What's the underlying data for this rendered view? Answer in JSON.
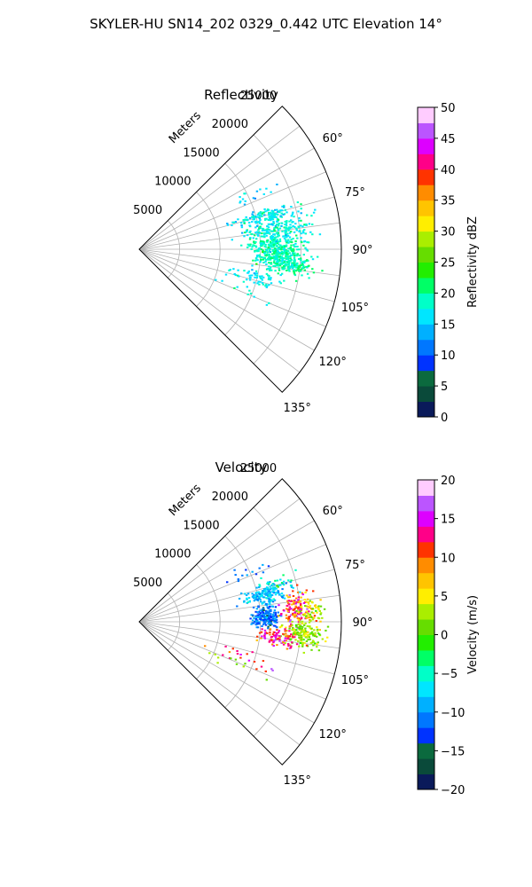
{
  "figure": {
    "suptitle": "SKYLER-HU  SN14_202  0329_0.442 UTC Elevation 14°"
  },
  "chart_data": [
    {
      "type": "polar-sector-scatter",
      "title": "Reflectivity",
      "radial_label": "Meters",
      "radial_ticks": [
        5000,
        10000,
        15000,
        20000,
        25000
      ],
      "radial_tick_labels": [
        "5000",
        "10000",
        "15000",
        "20000",
        "25000"
      ],
      "rmax": 25000,
      "theta_range_deg": [
        45,
        135
      ],
      "theta_ticks_deg": [
        60,
        75,
        90,
        105,
        120,
        135
      ],
      "theta_tick_labels": [
        "60°",
        "75°",
        "90°",
        "105°",
        "120°",
        "135°"
      ],
      "grid": true,
      "colorbar": {
        "label": "Reflectivity dBZ",
        "min": 0,
        "max": 50,
        "ticks": [
          0,
          5,
          10,
          15,
          20,
          25,
          30,
          35,
          40,
          45,
          50
        ],
        "tick_labels": [
          "0",
          "5",
          "10",
          "15",
          "20",
          "25",
          "30",
          "35",
          "40",
          "45",
          "50"
        ]
      },
      "echo_clusters": [
        {
          "range_m": 17000,
          "azimuth_deg": 90,
          "count": 340,
          "spread_r": 2600,
          "spread_az": 4.5,
          "value_mean": 19,
          "value_sd": 2.5
        },
        {
          "range_m": 17500,
          "azimuth_deg": 82,
          "count": 180,
          "spread_r": 3000,
          "spread_az": 3.5,
          "value_mean": 18,
          "value_sd": 2.5
        },
        {
          "range_m": 18500,
          "azimuth_deg": 96,
          "count": 160,
          "spread_r": 2200,
          "spread_az": 2.5,
          "value_mean": 19,
          "value_sd": 2.0
        },
        {
          "range_m": 16500,
          "azimuth_deg": 75,
          "count": 140,
          "spread_r": 2800,
          "spread_az": 2.5,
          "value_mean": 17,
          "value_sd": 2.5
        },
        {
          "range_m": 15000,
          "azimuth_deg": 103,
          "count": 60,
          "spread_r": 2500,
          "spread_az": 2.5,
          "value_mean": 17,
          "value_sd": 2.0
        },
        {
          "range_m": 13500,
          "azimuth_deg": 110,
          "count": 14,
          "spread_r": 2500,
          "spread_az": 4.0,
          "value_mean": 17,
          "value_sd": 2.0
        },
        {
          "range_m": 15000,
          "azimuth_deg": 64,
          "count": 16,
          "spread_r": 2000,
          "spread_az": 2.5,
          "value_mean": 15,
          "value_sd": 2.0
        }
      ]
    },
    {
      "type": "polar-sector-scatter",
      "title": "Velocity",
      "radial_label": "Meters",
      "radial_ticks": [
        5000,
        10000,
        15000,
        20000,
        25000
      ],
      "radial_tick_labels": [
        "5000",
        "10000",
        "15000",
        "20000",
        "25000"
      ],
      "rmax": 25000,
      "theta_range_deg": [
        45,
        135
      ],
      "theta_ticks_deg": [
        60,
        75,
        90,
        105,
        120,
        135
      ],
      "theta_tick_labels": [
        "60°",
        "75°",
        "90°",
        "105°",
        "120°",
        "135°"
      ],
      "grid": true,
      "colorbar": {
        "label": "Velocity (m/s)",
        "min": -20,
        "max": 20,
        "ticks": [
          -20,
          -15,
          -10,
          -5,
          0,
          5,
          10,
          15,
          20
        ],
        "tick_labels": [
          "−20",
          "−15",
          "−10",
          "−5",
          "0",
          "5",
          "10",
          "15",
          "20"
        ]
      },
      "echo_clusters": [
        {
          "range_m": 16000,
          "azimuth_deg": 78,
          "count": 160,
          "spread_r": 2200,
          "spread_az": 3.0,
          "value_mean": -8,
          "value_sd": 2.5
        },
        {
          "range_m": 15500,
          "azimuth_deg": 88,
          "count": 200,
          "spread_r": 1300,
          "spread_az": 3.5,
          "value_mean": -11,
          "value_sd": 2.5
        },
        {
          "range_m": 19500,
          "azimuth_deg": 86,
          "count": 130,
          "spread_r": 1500,
          "spread_az": 4.5,
          "value_mean": 11,
          "value_sd": 4.0
        },
        {
          "range_m": 20500,
          "azimuth_deg": 94,
          "count": 150,
          "spread_r": 1700,
          "spread_az": 3.5,
          "value_mean": 2,
          "value_sd": 3.0
        },
        {
          "range_m": 21500,
          "azimuth_deg": 86,
          "count": 60,
          "spread_r": 1200,
          "spread_az": 3.0,
          "value_mean": 4,
          "value_sd": 3.0
        },
        {
          "range_m": 17500,
          "azimuth_deg": 96,
          "count": 90,
          "spread_r": 1800,
          "spread_az": 2.5,
          "value_mean": 12,
          "value_sd": 3.0
        },
        {
          "range_m": 14000,
          "azimuth_deg": 108,
          "count": 20,
          "spread_r": 2500,
          "spread_az": 3.0,
          "value_mean": 12,
          "value_sd": 4.0
        },
        {
          "range_m": 13000,
          "azimuth_deg": 113,
          "count": 10,
          "spread_r": 2500,
          "spread_az": 4.0,
          "value_mean": 2,
          "value_sd": 2.0
        },
        {
          "range_m": 14500,
          "azimuth_deg": 66,
          "count": 14,
          "spread_r": 2000,
          "spread_az": 2.5,
          "value_mean": -11,
          "value_sd": 2.0
        },
        {
          "range_m": 17500,
          "azimuth_deg": 74,
          "count": 24,
          "spread_r": 1500,
          "spread_az": 2.5,
          "value_mean": -4,
          "value_sd": 3.0
        }
      ]
    }
  ]
}
